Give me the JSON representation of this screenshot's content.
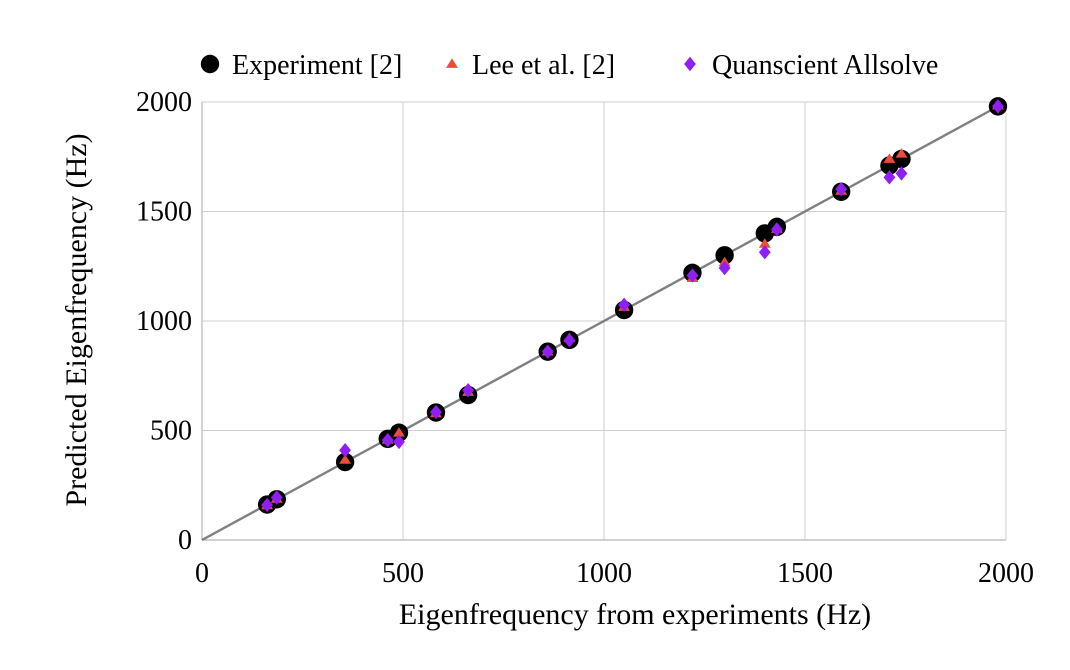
{
  "chart_data": {
    "type": "scatter",
    "title": "",
    "xlabel": "Eigenfrequency from experiments (Hz)",
    "ylabel": "Predicted Eigenfrequency (Hz)",
    "xlim": [
      0,
      2000
    ],
    "ylim": [
      0,
      2000
    ],
    "x_ticks": [
      0,
      500,
      1000,
      1500,
      2000
    ],
    "y_ticks": [
      0,
      500,
      1000,
      1500,
      2000
    ],
    "grid": true,
    "legend_position": "top",
    "reference_line": {
      "x": [
        0,
        2000
      ],
      "y": [
        0,
        2000
      ],
      "color": "#7f7f7f"
    },
    "series": [
      {
        "name": "Experiment [2]",
        "marker": "circle",
        "color": "#000000",
        "points": [
          {
            "x": 162,
            "y": 162
          },
          {
            "x": 186,
            "y": 186
          },
          {
            "x": 356,
            "y": 356
          },
          {
            "x": 462,
            "y": 462
          },
          {
            "x": 490,
            "y": 490
          },
          {
            "x": 582,
            "y": 582
          },
          {
            "x": 662,
            "y": 662
          },
          {
            "x": 860,
            "y": 860
          },
          {
            "x": 914,
            "y": 914
          },
          {
            "x": 1050,
            "y": 1050
          },
          {
            "x": 1220,
            "y": 1220
          },
          {
            "x": 1300,
            "y": 1300
          },
          {
            "x": 1400,
            "y": 1400
          },
          {
            "x": 1430,
            "y": 1430
          },
          {
            "x": 1590,
            "y": 1590
          },
          {
            "x": 1710,
            "y": 1710
          },
          {
            "x": 1740,
            "y": 1740
          },
          {
            "x": 1980,
            "y": 1980
          }
        ]
      },
      {
        "name": "Lee et al. [2]",
        "marker": "triangle",
        "color": "#f04b37",
        "points": [
          {
            "x": 162,
            "y": 158
          },
          {
            "x": 186,
            "y": 188
          },
          {
            "x": 356,
            "y": 366
          },
          {
            "x": 462,
            "y": 458
          },
          {
            "x": 490,
            "y": 490
          },
          {
            "x": 582,
            "y": 578
          },
          {
            "x": 662,
            "y": 676
          },
          {
            "x": 860,
            "y": 860
          },
          {
            "x": 914,
            "y": 922
          },
          {
            "x": 1050,
            "y": 1064
          },
          {
            "x": 1220,
            "y": 1196
          },
          {
            "x": 1300,
            "y": 1268
          },
          {
            "x": 1400,
            "y": 1352
          },
          {
            "x": 1430,
            "y": 1420
          },
          {
            "x": 1590,
            "y": 1594
          },
          {
            "x": 1710,
            "y": 1740
          },
          {
            "x": 1740,
            "y": 1764
          },
          {
            "x": 1980,
            "y": 1984
          }
        ]
      },
      {
        "name": "Quanscient Allsolve",
        "marker": "diamond",
        "color": "#8f1ff3",
        "points": [
          {
            "x": 162,
            "y": 160
          },
          {
            "x": 186,
            "y": 194
          },
          {
            "x": 356,
            "y": 410
          },
          {
            "x": 462,
            "y": 456
          },
          {
            "x": 490,
            "y": 448
          },
          {
            "x": 582,
            "y": 584
          },
          {
            "x": 662,
            "y": 684
          },
          {
            "x": 860,
            "y": 860
          },
          {
            "x": 914,
            "y": 912
          },
          {
            "x": 1050,
            "y": 1074
          },
          {
            "x": 1220,
            "y": 1208
          },
          {
            "x": 1300,
            "y": 1242
          },
          {
            "x": 1400,
            "y": 1314
          },
          {
            "x": 1430,
            "y": 1418
          },
          {
            "x": 1590,
            "y": 1602
          },
          {
            "x": 1710,
            "y": 1656
          },
          {
            "x": 1740,
            "y": 1674
          },
          {
            "x": 1980,
            "y": 1980
          }
        ]
      }
    ]
  },
  "colors": {
    "grid": "#cfcfcf",
    "axis": "#b8b8b8",
    "text": "#000000"
  }
}
